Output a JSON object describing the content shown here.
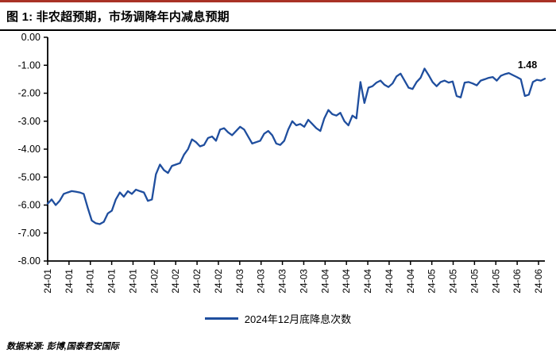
{
  "header": {
    "title": "图 1:  非农超预期，市场调降年内减息预期"
  },
  "legend": {
    "label": "2024年12月底降息次数"
  },
  "footer": {
    "source": "数据来源: 彭博,国泰君安国际"
  },
  "colors": {
    "accent_red": "#a93226",
    "line_blue": "#1f4e9e",
    "axis_black": "#000000"
  },
  "chart_data": {
    "type": "line",
    "title": "图 1: 非农超预期，市场调降年内减息预期",
    "xlabel": "",
    "ylabel": "",
    "ylim": [
      -8,
      0
    ],
    "grid": false,
    "legend_position": "bottom-center",
    "y_ticks": [
      "0.00",
      "-1.00",
      "-2.00",
      "-3.00",
      "-4.00",
      "-5.00",
      "-6.00",
      "-7.00",
      "-8.00"
    ],
    "x_ticks": [
      "24-01",
      "24-01",
      "24-01",
      "24-01",
      "24-01",
      "24-02",
      "24-02",
      "24-02",
      "24-02",
      "24-03",
      "24-03",
      "24-03",
      "24-03",
      "24-04",
      "24-04",
      "24-04",
      "24-04",
      "24-04",
      "24-05",
      "24-05",
      "24-05",
      "24-05",
      "24-06",
      "24-06"
    ],
    "annotation": {
      "text": "1.48",
      "value": -1.48
    },
    "series": [
      {
        "name": "2024年12月底降息次数",
        "color": "#1f4e9e",
        "values": [
          -5.95,
          -5.8,
          -6.0,
          -5.85,
          -5.6,
          -5.55,
          -5.5,
          -5.52,
          -5.55,
          -5.6,
          -6.1,
          -6.55,
          -6.65,
          -6.68,
          -6.6,
          -6.3,
          -6.2,
          -5.8,
          -5.55,
          -5.7,
          -5.5,
          -5.6,
          -5.45,
          -5.5,
          -5.55,
          -5.85,
          -5.8,
          -4.9,
          -4.55,
          -4.75,
          -4.85,
          -4.6,
          -4.55,
          -4.5,
          -4.2,
          -4.0,
          -3.65,
          -3.75,
          -3.9,
          -3.85,
          -3.6,
          -3.55,
          -3.7,
          -3.3,
          -3.25,
          -3.4,
          -3.5,
          -3.35,
          -3.2,
          -3.3,
          -3.55,
          -3.8,
          -3.75,
          -3.7,
          -3.45,
          -3.35,
          -3.5,
          -3.8,
          -3.85,
          -3.7,
          -3.3,
          -3.0,
          -3.15,
          -3.1,
          -3.2,
          -2.95,
          -3.1,
          -3.25,
          -3.35,
          -2.9,
          -2.6,
          -2.75,
          -2.8,
          -2.7,
          -3.0,
          -3.15,
          -2.8,
          -2.9,
          -1.6,
          -2.35,
          -1.8,
          -1.75,
          -1.62,
          -1.55,
          -1.7,
          -1.78,
          -1.65,
          -1.4,
          -1.3,
          -1.55,
          -1.8,
          -1.85,
          -1.6,
          -1.45,
          -1.12,
          -1.35,
          -1.6,
          -1.75,
          -1.6,
          -1.55,
          -1.62,
          -1.58,
          -2.1,
          -2.15,
          -1.62,
          -1.6,
          -1.65,
          -1.72,
          -1.55,
          -1.5,
          -1.45,
          -1.42,
          -1.55,
          -1.38,
          -1.32,
          -1.28,
          -1.35,
          -1.42,
          -1.5,
          -2.1,
          -2.05,
          -1.6,
          -1.52,
          -1.55,
          -1.48
        ]
      }
    ]
  }
}
